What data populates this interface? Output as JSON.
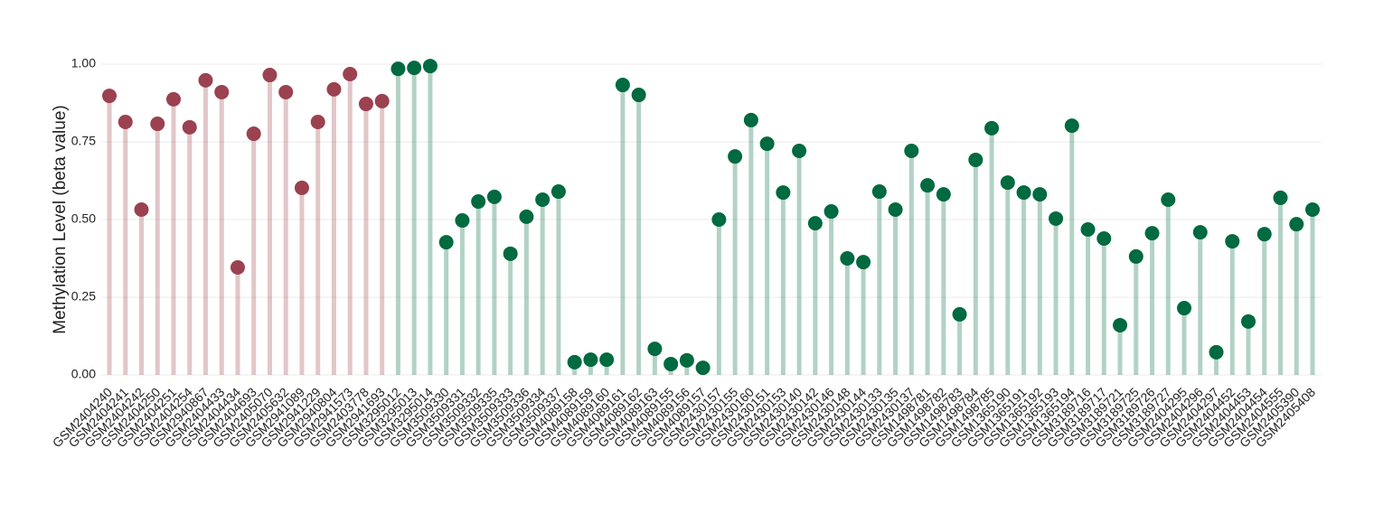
{
  "chart_data": {
    "type": "lollipop",
    "y_label": "Methylation Level (beta value)",
    "categories": [
      "GSM2404240",
      "GSM2404241",
      "GSM2404242",
      "GSM2404250",
      "GSM2404251",
      "GSM2404254",
      "GSM2940867",
      "GSM2404433",
      "GSM2404434",
      "GSM2404693",
      "GSM2405070",
      "GSM2405632",
      "GSM2941089",
      "GSM2941229",
      "GSM2940804",
      "GSM2941573",
      "GSM2403778",
      "GSM2941693",
      "GSM3295012",
      "GSM3295013",
      "GSM3295014",
      "GSM3509330",
      "GSM3509331",
      "GSM3509332",
      "GSM3509335",
      "GSM3509333",
      "GSM3509336",
      "GSM3509334",
      "GSM3509337",
      "GSM4089158",
      "GSM4089159",
      "GSM4089160",
      "GSM4089161",
      "GSM4089162",
      "GSM4089163",
      "GSM4089155",
      "GSM4089156",
      "GSM4089157",
      "GSM2430157",
      "GSM2430155",
      "GSM2430160",
      "GSM2430151",
      "GSM2430153",
      "GSM2430140",
      "GSM2430142",
      "GSM2430146",
      "GSM2430148",
      "GSM2430144",
      "GSM2430133",
      "GSM2430135",
      "GSM2430137",
      "GSM1498781",
      "GSM1498782",
      "GSM1498783",
      "GSM1498784",
      "GSM1498785",
      "GSM1365190",
      "GSM1365191",
      "GSM1365192",
      "GSM1365193",
      "GSM1365194",
      "GSM3189716",
      "GSM3189717",
      "GSM3189721",
      "GSM3189725",
      "GSM3189726",
      "GSM3189727",
      "GSM2404295",
      "GSM2404296",
      "GSM2404297",
      "GSM2404452",
      "GSM2404453",
      "GSM2404454",
      "GSM2404555",
      "GSM2405390",
      "GSM2405408"
    ],
    "values": [
      0.898,
      0.814,
      0.532,
      0.808,
      0.887,
      0.797,
      0.948,
      0.91,
      0.346,
      0.776,
      0.965,
      0.91,
      0.602,
      0.814,
      0.919,
      0.968,
      0.872,
      0.881,
      0.985,
      0.988,
      0.994,
      0.427,
      0.497,
      0.558,
      0.573,
      0.39,
      0.509,
      0.564,
      0.59,
      0.041,
      0.049,
      0.049,
      0.933,
      0.901,
      0.084,
      0.035,
      0.047,
      0.023,
      0.5,
      0.703,
      0.82,
      0.744,
      0.587,
      0.721,
      0.488,
      0.526,
      0.375,
      0.363,
      0.59,
      0.532,
      0.721,
      0.61,
      0.581,
      0.195,
      0.692,
      0.794,
      0.619,
      0.587,
      0.581,
      0.503,
      0.802,
      0.468,
      0.439,
      0.16,
      0.381,
      0.456,
      0.564,
      0.215,
      0.459,
      0.073,
      0.43,
      0.172,
      0.453,
      0.57,
      0.485,
      0.532
    ],
    "colors": [
      "#9b4150",
      "#9b4150",
      "#9b4150",
      "#9b4150",
      "#9b4150",
      "#9b4150",
      "#9b4150",
      "#9b4150",
      "#9b4150",
      "#9b4150",
      "#9b4150",
      "#9b4150",
      "#9b4150",
      "#9b4150",
      "#9b4150",
      "#9b4150",
      "#9b4150",
      "#9b4150",
      "#006a40",
      "#006a40",
      "#006a40",
      "#006a40",
      "#006a40",
      "#006a40",
      "#006a40",
      "#006a40",
      "#006a40",
      "#006a40",
      "#006a40",
      "#006a40",
      "#006a40",
      "#006a40",
      "#006a40",
      "#006a40",
      "#006a40",
      "#006a40",
      "#006a40",
      "#006a40",
      "#006a40",
      "#006a40",
      "#006a40",
      "#006a40",
      "#006a40",
      "#006a40",
      "#006a40",
      "#006a40",
      "#006a40",
      "#006a40",
      "#006a40",
      "#006a40",
      "#006a40",
      "#006a40",
      "#006a40",
      "#006a40",
      "#006a40",
      "#006a40",
      "#006a40",
      "#006a40",
      "#006a40",
      "#006a40",
      "#006a40",
      "#006a40",
      "#006a40",
      "#006a40",
      "#006a40",
      "#006a40",
      "#006a40",
      "#006a40",
      "#006a40",
      "#006a40",
      "#006a40",
      "#006a40",
      "#006a40",
      "#006a40",
      "#006a40",
      "#006a40"
    ],
    "ylim": [
      0,
      1
    ],
    "yticks": [
      {
        "value": 0,
        "label": "0.00"
      },
      {
        "value": 0.25,
        "label": "0.25"
      },
      {
        "value": 0.5,
        "label": "0.50"
      },
      {
        "value": 0.75,
        "label": "0.75"
      },
      {
        "value": 1,
        "label": "1.00"
      }
    ],
    "grid": true
  }
}
